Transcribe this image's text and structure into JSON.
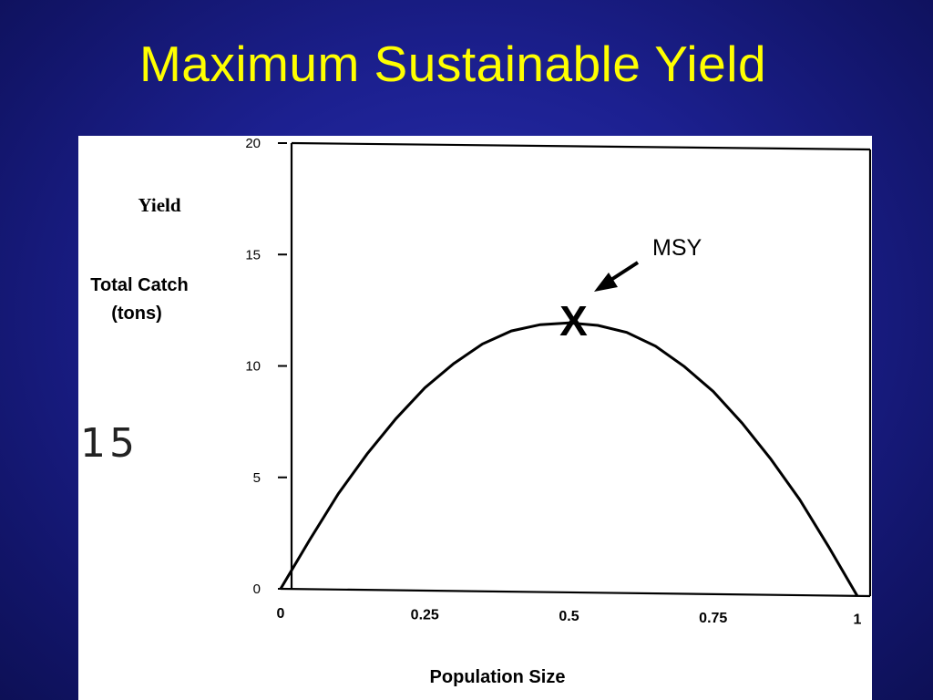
{
  "slide": {
    "title": "Maximum Sustainable Yield"
  },
  "chart_data": {
    "type": "line",
    "title": "",
    "xlabel": "Population Size",
    "ylabel": "Yield",
    "ylabel_sub": [
      "Total Catch",
      "(tons)"
    ],
    "xlim": [
      0,
      1
    ],
    "ylim": [
      0,
      20
    ],
    "xticks": [
      {
        "value": 0,
        "label": "0"
      },
      {
        "value": 0.25,
        "label": "0.25"
      },
      {
        "value": 0.5,
        "label": "0.5"
      },
      {
        "value": 0.75,
        "label": "0.75"
      },
      {
        "value": 1,
        "label": "1"
      }
    ],
    "yticks": [
      {
        "value": 0,
        "label": "0"
      },
      {
        "value": 5,
        "label": "5"
      },
      {
        "value": 10,
        "label": "10"
      },
      {
        "value": 15,
        "label": "15"
      },
      {
        "value": 20,
        "label": "20"
      }
    ],
    "grid": false,
    "series": [
      {
        "x": [
          0,
          0.05,
          0.1,
          0.15,
          0.2,
          0.25,
          0.3,
          0.35,
          0.4,
          0.45,
          0.5,
          0.55,
          0.6,
          0.65,
          0.7,
          0.75,
          0.8,
          0.85,
          0.9,
          0.95,
          1
        ],
        "y": [
          0,
          2.2,
          4.3,
          6.1,
          7.7,
          9.1,
          10.2,
          11.1,
          11.7,
          12.0,
          12.1,
          12.0,
          11.7,
          11.1,
          10.2,
          9.1,
          7.7,
          6.1,
          4.3,
          2.2,
          0
        ]
      }
    ],
    "annotations": {
      "msy_marker": {
        "x": 0.5,
        "y": 12.1,
        "symbol": "X"
      },
      "msy_label": "MSY"
    },
    "handwritten_note": "15",
    "color": "#000000"
  }
}
